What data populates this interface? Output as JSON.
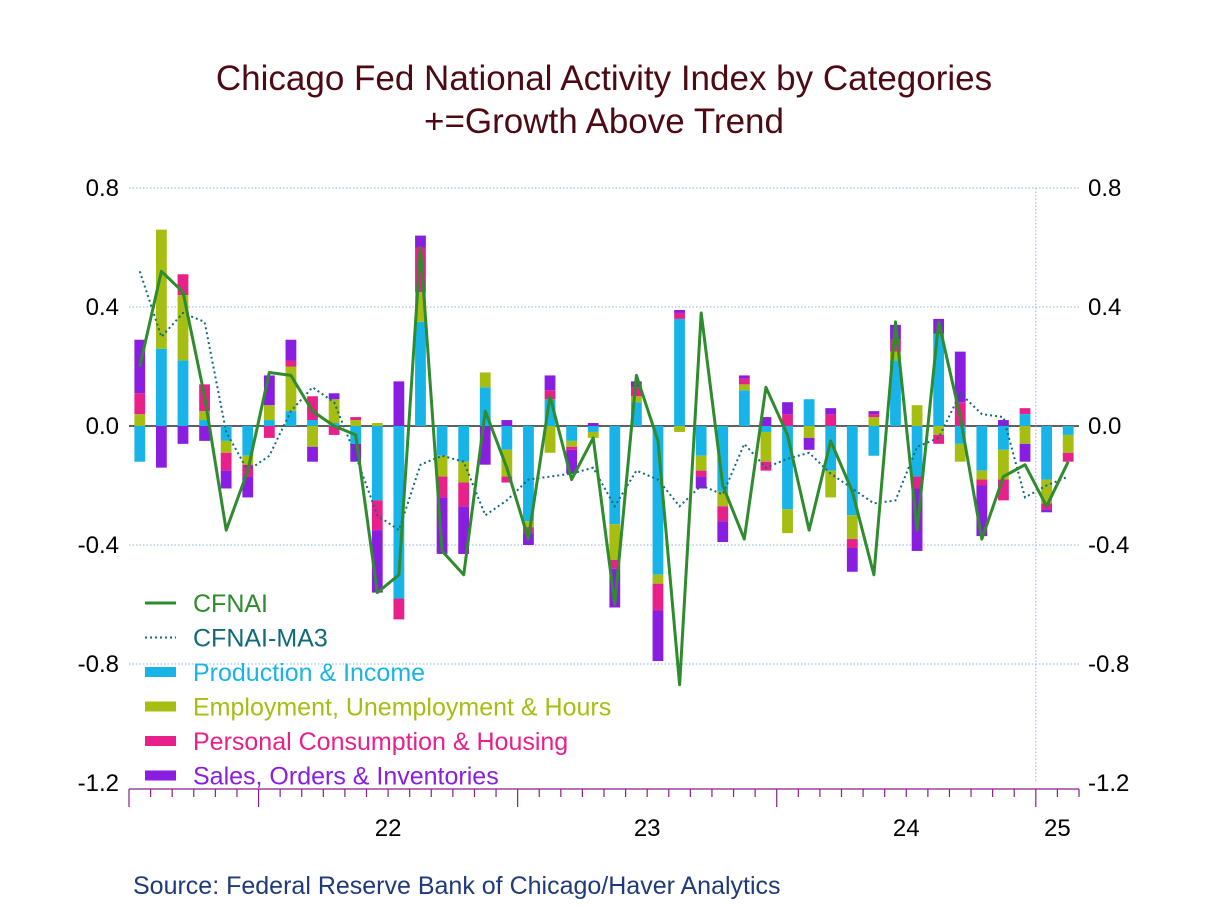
{
  "chart_data": {
    "type": "bar",
    "title": "Chicago Fed National Activity Index by Categories",
    "subtitle": "+=Growth Above Trend",
    "source": "Source:  Federal Reserve Bank of Chicago/Haver Analytics",
    "ylim": [
      -1.2,
      0.8
    ],
    "y_ticks": [
      "0.8",
      "0.4",
      "0.0",
      "-0.4",
      "-0.8",
      "-1.2"
    ],
    "y_tick_values": [
      0.8,
      0.4,
      0.0,
      -0.4,
      -0.8,
      -1.2
    ],
    "x_tick_labels": [
      "22",
      "23",
      "24",
      "25"
    ],
    "start": "2021-07",
    "months": 44,
    "year_start_index": [
      6,
      18,
      30,
      42
    ],
    "divider_index": 42,
    "legend": [
      {
        "name": "CFNAI",
        "color": "#2e8b2e",
        "style": "line"
      },
      {
        "name": "CFNAI-MA3",
        "color": "#0f6a7a",
        "style": "dotted"
      },
      {
        "name": "Production & Income",
        "color": "#18b4e8",
        "style": "bar"
      },
      {
        "name": "Employment, Unemployment & Hours",
        "color": "#a6bd12",
        "style": "bar"
      },
      {
        "name": "Personal Consumption & Housing",
        "color": "#e8208a",
        "style": "bar"
      },
      {
        "name": "Sales, Orders & Inventories",
        "color": "#8a1ee0",
        "style": "bar"
      }
    ],
    "series": [
      {
        "name": "Production & Income",
        "values": [
          -0.12,
          0.26,
          0.22,
          0.02,
          -0.05,
          -0.1,
          0.02,
          0.05,
          0.02,
          0.01,
          -0.06,
          -0.25,
          -0.58,
          0.35,
          -0.1,
          -0.12,
          0.13,
          -0.08,
          -0.32,
          0.09,
          -0.05,
          -0.02,
          -0.33,
          0.08,
          -0.5,
          0.36,
          -0.1,
          -0.22,
          0.12,
          -0.02,
          -0.28,
          0.09,
          -0.15,
          -0.3,
          -0.1,
          0.22,
          -0.17,
          0.31,
          -0.06,
          -0.15,
          -0.08,
          0.04,
          -0.18,
          -0.03
        ]
      },
      {
        "name": "Employment, Unemployment & Hours",
        "values": [
          0.04,
          0.4,
          0.22,
          0.03,
          -0.04,
          -0.03,
          0.05,
          0.15,
          -0.07,
          0.08,
          0.02,
          0.01,
          0.0,
          0.1,
          -0.07,
          -0.07,
          0.05,
          -0.09,
          -0.02,
          -0.09,
          -0.02,
          -0.02,
          -0.12,
          0.02,
          -0.03,
          -0.02,
          -0.05,
          -0.05,
          0.02,
          -0.1,
          -0.08,
          -0.04,
          -0.09,
          -0.08,
          0.03,
          0.03,
          0.07,
          -0.03,
          -0.06,
          -0.03,
          -0.1,
          -0.06,
          -0.08,
          -0.06
        ]
      },
      {
        "name": "Personal Consumption & Housing",
        "values": [
          0.07,
          0.0,
          0.07,
          0.09,
          -0.06,
          -0.04,
          -0.04,
          0.02,
          0.08,
          -0.03,
          0.01,
          -0.1,
          -0.07,
          0.15,
          -0.07,
          -0.08,
          0.0,
          -0.02,
          -0.02,
          0.03,
          -0.01,
          0.0,
          -0.03,
          0.03,
          -0.09,
          0.02,
          -0.02,
          -0.05,
          0.02,
          -0.03,
          0.04,
          0.0,
          0.04,
          -0.03,
          0.01,
          0.04,
          -0.04,
          -0.03,
          0.08,
          -0.02,
          -0.07,
          0.02,
          -0.02,
          -0.03
        ]
      },
      {
        "name": "Sales, Orders & Inventories",
        "values": [
          0.18,
          -0.14,
          -0.06,
          -0.05,
          -0.06,
          -0.07,
          0.1,
          0.07,
          -0.05,
          0.02,
          -0.06,
          -0.21,
          0.15,
          0.04,
          -0.19,
          -0.16,
          -0.13,
          0.02,
          -0.04,
          0.05,
          -0.08,
          0.01,
          -0.13,
          0.02,
          -0.17,
          0.01,
          -0.04,
          -0.07,
          0.01,
          0.03,
          0.04,
          -0.04,
          0.02,
          -0.08,
          0.01,
          0.05,
          -0.21,
          0.05,
          0.17,
          -0.17,
          0.02,
          -0.06,
          -0.01,
          0.0
        ]
      }
    ],
    "lines": [
      {
        "name": "CFNAI",
        "values": [
          0.2,
          0.52,
          0.45,
          0.1,
          -0.35,
          -0.15,
          0.18,
          0.17,
          0.05,
          0.0,
          -0.03,
          -0.56,
          -0.5,
          0.6,
          -0.42,
          -0.5,
          0.05,
          -0.14,
          -0.38,
          0.1,
          -0.18,
          -0.04,
          -0.6,
          0.17,
          -0.05,
          -0.87,
          0.38,
          -0.2,
          -0.38,
          0.13,
          -0.03,
          -0.35,
          -0.05,
          -0.22,
          -0.5,
          0.35,
          -0.35,
          0.35,
          0.03,
          -0.38,
          -0.17,
          -0.13,
          -0.27,
          -0.12
        ]
      },
      {
        "name": "CFNAI-MA3",
        "values": [
          0.52,
          0.3,
          0.38,
          0.35,
          -0.02,
          -0.15,
          -0.1,
          0.05,
          0.13,
          0.08,
          -0.1,
          -0.3,
          -0.35,
          -0.13,
          -0.1,
          -0.12,
          -0.3,
          -0.25,
          -0.18,
          -0.17,
          -0.16,
          -0.14,
          -0.27,
          -0.15,
          -0.18,
          -0.27,
          -0.2,
          -0.23,
          -0.06,
          -0.14,
          -0.11,
          -0.09,
          -0.16,
          -0.21,
          -0.26,
          -0.25,
          -0.07,
          -0.04,
          0.11,
          0.04,
          0.03,
          -0.24,
          -0.2,
          -0.17
        ]
      }
    ]
  }
}
